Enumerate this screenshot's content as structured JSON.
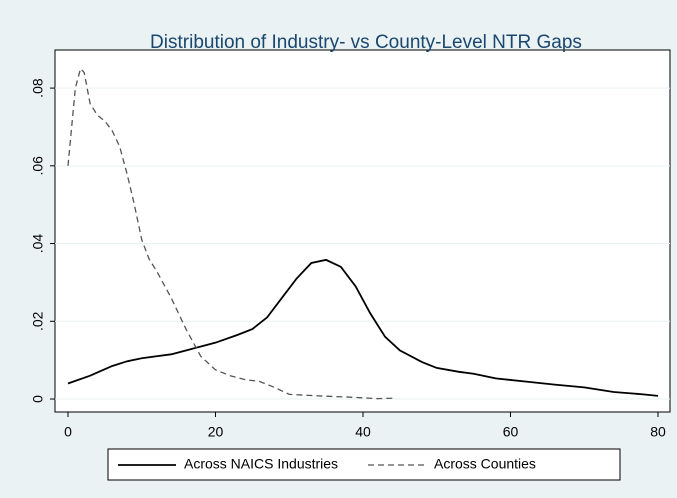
{
  "chart_data": {
    "type": "line",
    "title": "Distribution of Industry- vs County-Level NTR Gaps",
    "xlim": [
      -1.76,
      81.63
    ],
    "xticks": [
      0,
      20,
      40,
      60,
      80
    ],
    "ylim": [
      -0.00334,
      0.0898
    ],
    "yticks": [
      0,
      {
        "value": 0.02,
        "label": ".02"
      },
      {
        "value": 0.04,
        "label": ".04"
      },
      {
        "value": 0.06,
        "label": ".06"
      },
      {
        "value": 0.08,
        "label": ".08"
      }
    ],
    "grid": true,
    "legend": "bottom",
    "series": [
      {
        "name": "Across NAICS Industries",
        "color": "#000000",
        "style": "solid",
        "x": [
          0,
          3,
          6,
          8,
          10,
          12,
          14,
          17,
          20,
          23,
          25,
          27,
          29,
          31,
          33,
          35,
          37,
          39,
          41,
          43,
          45,
          48,
          50,
          53,
          55,
          58,
          62,
          66,
          70,
          74,
          78,
          80
        ],
        "values": [
          0.004,
          0.006,
          0.0085,
          0.0097,
          0.0105,
          0.011,
          0.0115,
          0.013,
          0.0145,
          0.0165,
          0.018,
          0.021,
          0.026,
          0.031,
          0.035,
          0.0358,
          0.034,
          0.029,
          0.022,
          0.016,
          0.0125,
          0.0095,
          0.008,
          0.007,
          0.0065,
          0.0053,
          0.0045,
          0.0037,
          0.003,
          0.0018,
          0.0012,
          0.0008
        ]
      },
      {
        "name": "Across Counties",
        "color": "#555555",
        "style": "dashed",
        "x": [
          0,
          0.5,
          1,
          1.7,
          2.2,
          3,
          4,
          5,
          6,
          7,
          8,
          9,
          10,
          11,
          12,
          14,
          16,
          18,
          20,
          22,
          24,
          26,
          28,
          30,
          34,
          38,
          42,
          44
        ],
        "values": [
          0.06,
          0.07,
          0.08,
          0.085,
          0.084,
          0.076,
          0.073,
          0.0715,
          0.069,
          0.065,
          0.058,
          0.05,
          0.041,
          0.036,
          0.033,
          0.026,
          0.018,
          0.011,
          0.0075,
          0.006,
          0.005,
          0.0045,
          0.003,
          0.0012,
          0.0008,
          0.0005,
          0.0001,
          0.0002
        ]
      }
    ]
  }
}
